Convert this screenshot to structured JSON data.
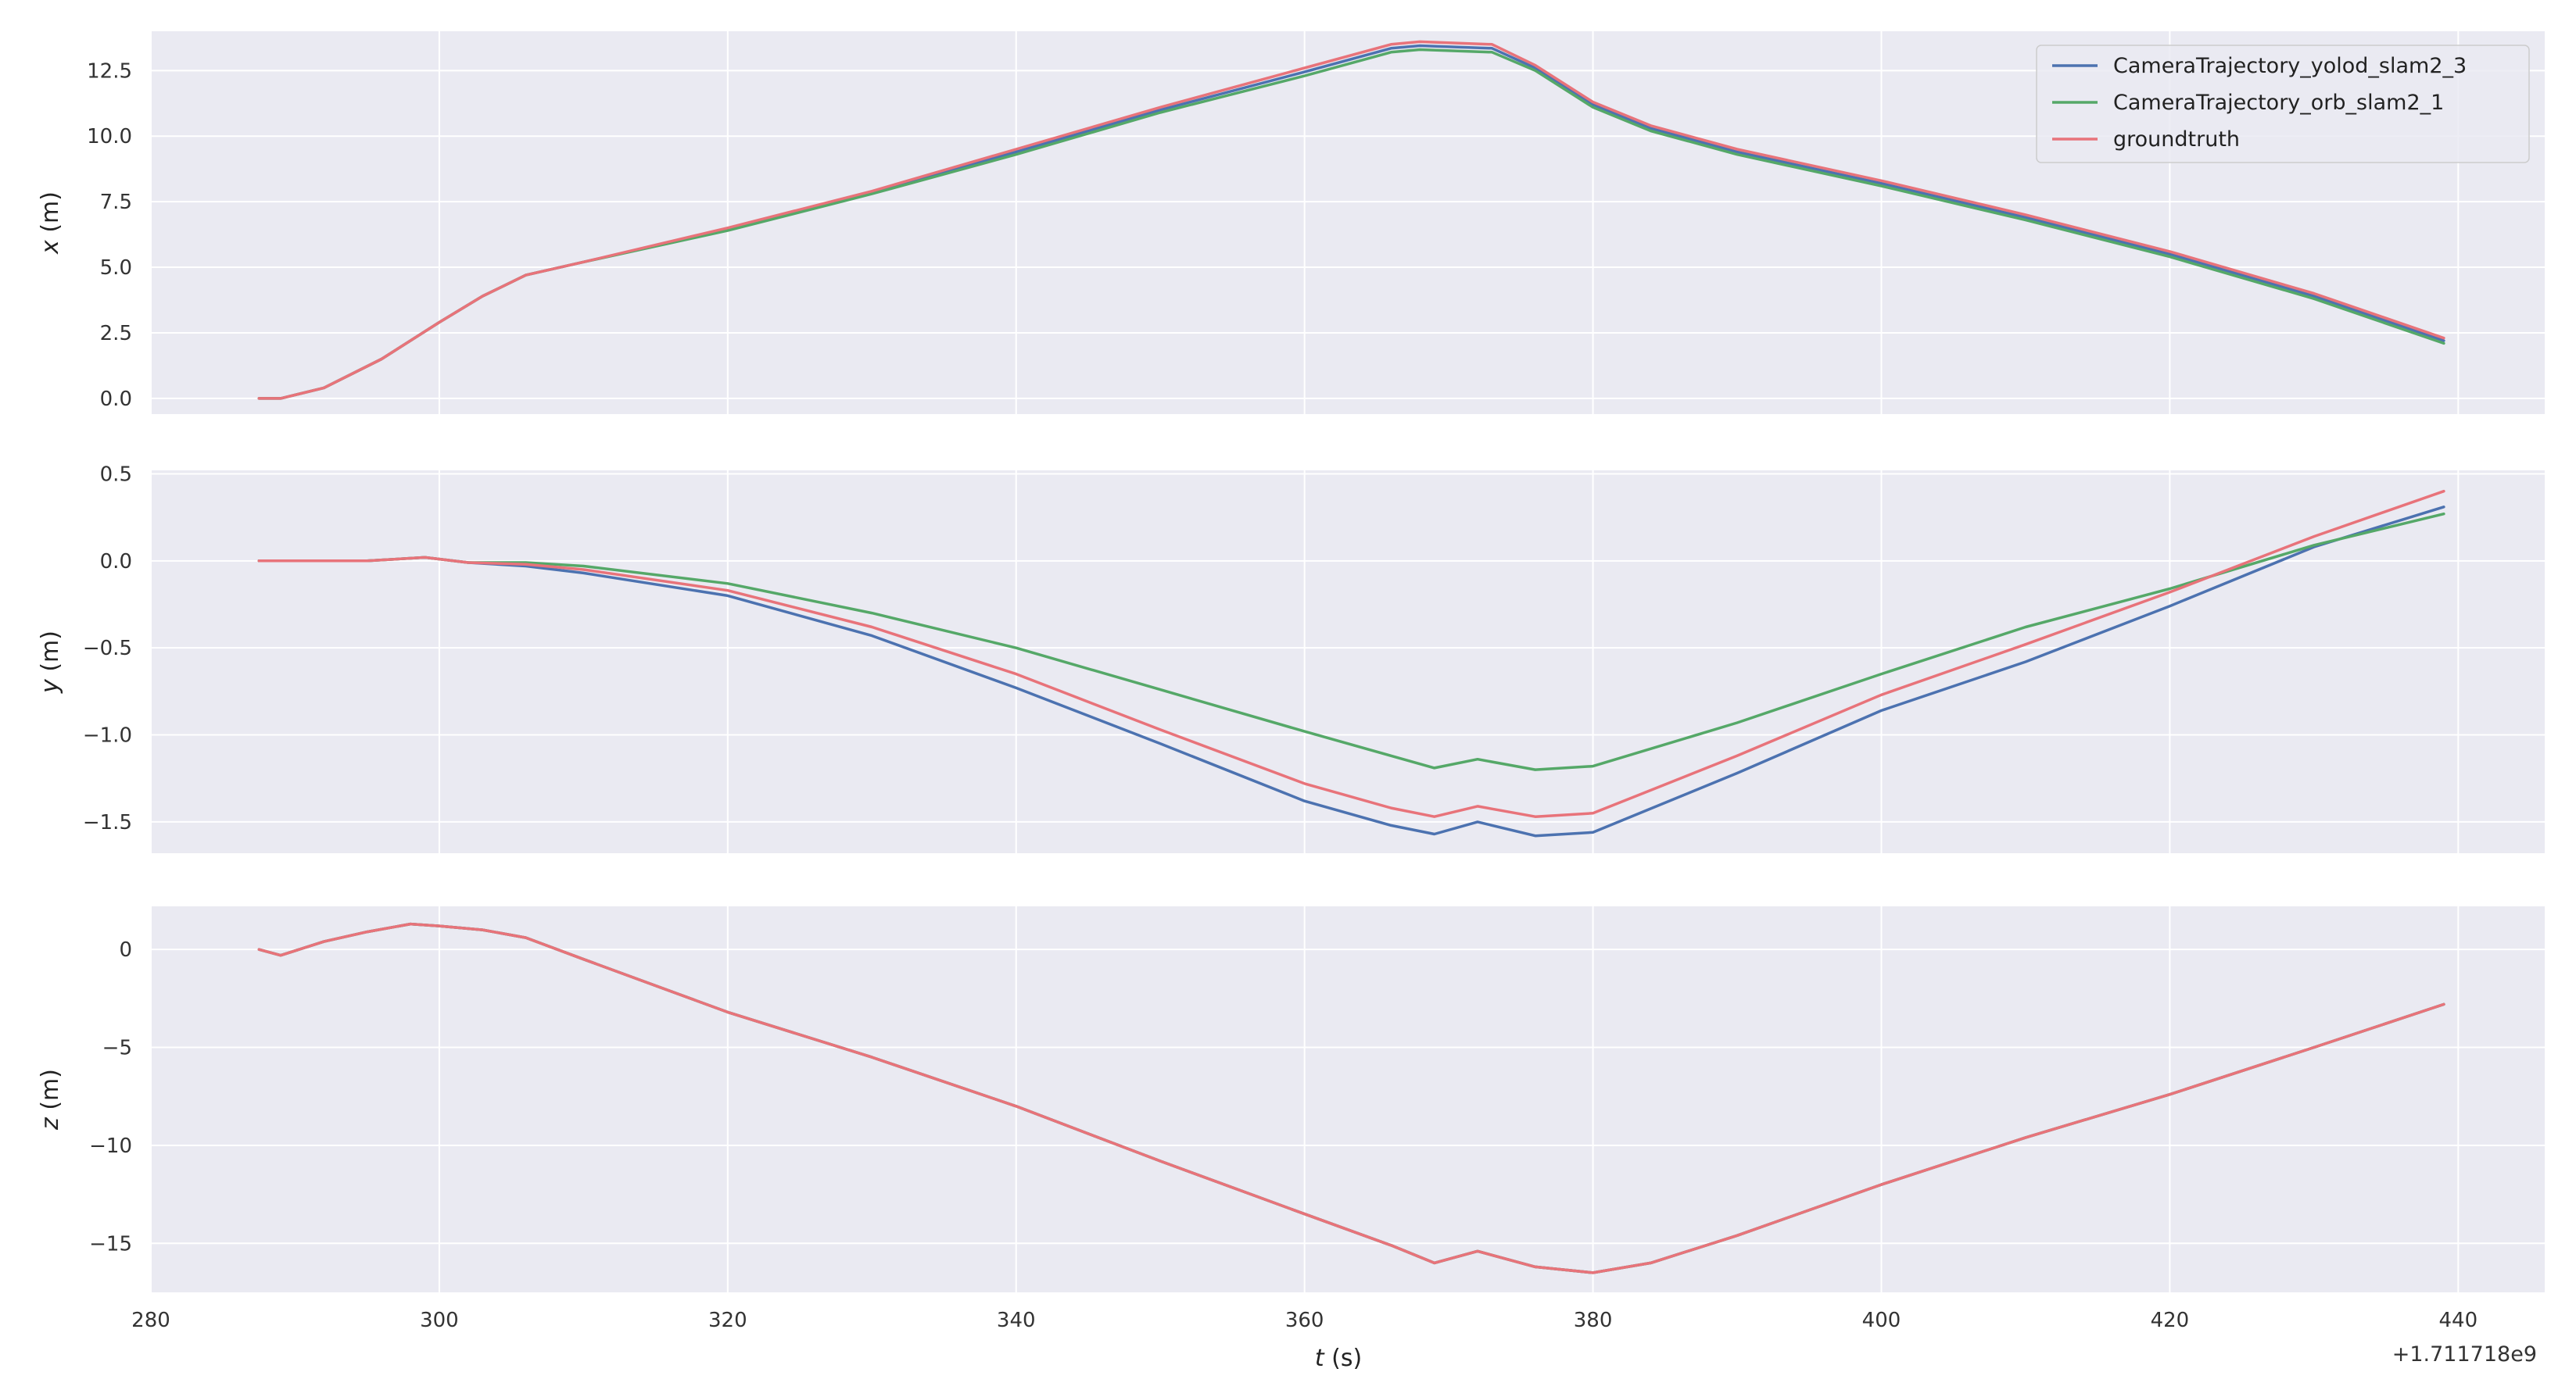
{
  "chart_data": {
    "type": "line",
    "x_offset_label": "+1.711718e9",
    "xlabel": "t (s)",
    "xlabel_var": "t",
    "xlabel_unit": " (s)",
    "xlim": [
      280,
      446
    ],
    "xticks": [
      280,
      300,
      320,
      340,
      360,
      380,
      400,
      420,
      440
    ],
    "grid": true,
    "legend": {
      "location": "top-right of first subplot",
      "entries": [
        "CameraTrajectory_yolod_slam2_3",
        "CameraTrajectory_orb_slam2_1",
        "groundtruth"
      ]
    },
    "colors": {
      "CameraTrajectory_yolod_slam2_3": "#4c72b0",
      "CameraTrajectory_orb_slam2_1": "#55a868",
      "groundtruth": "#e8737a",
      "background": "#eaeaf2",
      "grid": "#ffffff"
    },
    "subplots": [
      {
        "ylabel": "x (m)",
        "ylabel_var": "x",
        "ylabel_unit": " (m)",
        "ylim": [
          -0.6,
          14.0
        ],
        "yticks": [
          0.0,
          2.5,
          5.0,
          7.5,
          10.0,
          12.5
        ],
        "ytick_labels": [
          "0.0",
          "2.5",
          "5.0",
          "7.5",
          "10.0",
          "12.5"
        ],
        "series": [
          {
            "name": "groundtruth",
            "points": [
              [
                287.5,
                0.0
              ],
              [
                289,
                0.0
              ],
              [
                292,
                0.4
              ],
              [
                296,
                1.5
              ],
              [
                300,
                2.9
              ],
              [
                303,
                3.9
              ],
              [
                306,
                4.7
              ],
              [
                310,
                5.2
              ],
              [
                320,
                6.5
              ],
              [
                330,
                7.9
              ],
              [
                340,
                9.5
              ],
              [
                350,
                11.1
              ],
              [
                360,
                12.6
              ],
              [
                366,
                13.5
              ],
              [
                368,
                13.6
              ],
              [
                373,
                13.5
              ],
              [
                376,
                12.7
              ],
              [
                380,
                11.3
              ],
              [
                384,
                10.4
              ],
              [
                390,
                9.5
              ],
              [
                400,
                8.3
              ],
              [
                410,
                7.0
              ],
              [
                420,
                5.6
              ],
              [
                430,
                4.0
              ],
              [
                439,
                2.3
              ]
            ]
          },
          {
            "name": "CameraTrajectory_orb_slam2_1",
            "points": [
              [
                287.5,
                0.0
              ],
              [
                289,
                0.0
              ],
              [
                292,
                0.4
              ],
              [
                296,
                1.5
              ],
              [
                300,
                2.9
              ],
              [
                303,
                3.9
              ],
              [
                306,
                4.7
              ],
              [
                310,
                5.2
              ],
              [
                320,
                6.4
              ],
              [
                330,
                7.8
              ],
              [
                340,
                9.3
              ],
              [
                350,
                10.9
              ],
              [
                360,
                12.3
              ],
              [
                366,
                13.2
              ],
              [
                368,
                13.3
              ],
              [
                373,
                13.2
              ],
              [
                376,
                12.5
              ],
              [
                380,
                11.1
              ],
              [
                384,
                10.2
              ],
              [
                390,
                9.3
              ],
              [
                400,
                8.1
              ],
              [
                410,
                6.8
              ],
              [
                420,
                5.4
              ],
              [
                430,
                3.8
              ],
              [
                439,
                2.1
              ]
            ]
          },
          {
            "name": "CameraTrajectory_yolod_slam2_3",
            "points": [
              [
                287.5,
                0.0
              ],
              [
                289,
                0.0
              ],
              [
                292,
                0.4
              ],
              [
                296,
                1.5
              ],
              [
                300,
                2.9
              ],
              [
                303,
                3.9
              ],
              [
                306,
                4.7
              ],
              [
                310,
                5.2
              ],
              [
                320,
                6.45
              ],
              [
                330,
                7.85
              ],
              [
                340,
                9.4
              ],
              [
                350,
                11.0
              ],
              [
                360,
                12.45
              ],
              [
                366,
                13.35
              ],
              [
                368,
                13.45
              ],
              [
                373,
                13.35
              ],
              [
                376,
                12.6
              ],
              [
                380,
                11.2
              ],
              [
                384,
                10.3
              ],
              [
                390,
                9.4
              ],
              [
                400,
                8.2
              ],
              [
                410,
                6.9
              ],
              [
                420,
                5.5
              ],
              [
                430,
                3.9
              ],
              [
                439,
                2.2
              ]
            ]
          }
        ]
      },
      {
        "ylabel": "y (m)",
        "ylabel_var": "y",
        "ylabel_unit": " (m)",
        "ylim": [
          -1.68,
          0.52
        ],
        "yticks": [
          -1.5,
          -1.0,
          -0.5,
          0.0,
          0.5
        ],
        "ytick_labels": [
          "−1.5",
          "−1.0",
          "−0.5",
          "0.0",
          "0.5"
        ],
        "series": [
          {
            "name": "groundtruth",
            "points": [
              [
                287.5,
                0.0
              ],
              [
                295,
                0.0
              ],
              [
                299,
                0.02
              ],
              [
                302,
                -0.01
              ],
              [
                306,
                -0.02
              ],
              [
                310,
                -0.05
              ],
              [
                320,
                -0.17
              ],
              [
                330,
                -0.38
              ],
              [
                340,
                -0.65
              ],
              [
                350,
                -0.97
              ],
              [
                360,
                -1.28
              ],
              [
                366,
                -1.42
              ],
              [
                369,
                -1.47
              ],
              [
                372,
                -1.41
              ],
              [
                376,
                -1.47
              ],
              [
                380,
                -1.45
              ],
              [
                390,
                -1.12
              ],
              [
                400,
                -0.77
              ],
              [
                410,
                -0.48
              ],
              [
                420,
                -0.18
              ],
              [
                430,
                0.14
              ],
              [
                439,
                0.4
              ]
            ]
          },
          {
            "name": "CameraTrajectory_orb_slam2_1",
            "points": [
              [
                287.5,
                0.0
              ],
              [
                295,
                0.0
              ],
              [
                299,
                0.02
              ],
              [
                302,
                -0.01
              ],
              [
                306,
                -0.01
              ],
              [
                310,
                -0.03
              ],
              [
                320,
                -0.13
              ],
              [
                330,
                -0.3
              ],
              [
                340,
                -0.5
              ],
              [
                350,
                -0.74
              ],
              [
                360,
                -0.98
              ],
              [
                366,
                -1.12
              ],
              [
                369,
                -1.19
              ],
              [
                372,
                -1.14
              ],
              [
                376,
                -1.2
              ],
              [
                380,
                -1.18
              ],
              [
                390,
                -0.93
              ],
              [
                400,
                -0.65
              ],
              [
                410,
                -0.38
              ],
              [
                420,
                -0.16
              ],
              [
                430,
                0.09
              ],
              [
                439,
                0.27
              ]
            ]
          },
          {
            "name": "CameraTrajectory_yolod_slam2_3",
            "points": [
              [
                287.5,
                0.0
              ],
              [
                295,
                0.0
              ],
              [
                299,
                0.02
              ],
              [
                302,
                -0.01
              ],
              [
                306,
                -0.03
              ],
              [
                310,
                -0.07
              ],
              [
                320,
                -0.2
              ],
              [
                330,
                -0.43
              ],
              [
                340,
                -0.73
              ],
              [
                350,
                -1.05
              ],
              [
                360,
                -1.38
              ],
              [
                366,
                -1.52
              ],
              [
                369,
                -1.57
              ],
              [
                372,
                -1.5
              ],
              [
                376,
                -1.58
              ],
              [
                380,
                -1.56
              ],
              [
                390,
                -1.22
              ],
              [
                400,
                -0.86
              ],
              [
                410,
                -0.58
              ],
              [
                420,
                -0.26
              ],
              [
                430,
                0.08
              ],
              [
                439,
                0.31
              ]
            ]
          }
        ]
      },
      {
        "ylabel": "z (m)",
        "ylabel_var": "z",
        "ylabel_unit": " (m)",
        "ylim": [
          -17.5,
          2.2
        ],
        "yticks": [
          -15,
          -10,
          -5,
          0
        ],
        "ytick_labels": [
          "−15",
          "−10",
          "−5",
          "0"
        ],
        "series": [
          {
            "name": "groundtruth",
            "points": [
              [
                287.5,
                0.0
              ],
              [
                289,
                -0.3
              ],
              [
                292,
                0.4
              ],
              [
                295,
                0.9
              ],
              [
                298,
                1.3
              ],
              [
                300,
                1.2
              ],
              [
                303,
                1.0
              ],
              [
                306,
                0.6
              ],
              [
                310,
                -0.5
              ],
              [
                320,
                -3.2
              ],
              [
                330,
                -5.5
              ],
              [
                340,
                -8.0
              ],
              [
                350,
                -10.8
              ],
              [
                360,
                -13.5
              ],
              [
                366,
                -15.1
              ],
              [
                369,
                -16.0
              ],
              [
                372,
                -15.4
              ],
              [
                376,
                -16.2
              ],
              [
                380,
                -16.5
              ],
              [
                384,
                -16.0
              ],
              [
                390,
                -14.6
              ],
              [
                400,
                -12.0
              ],
              [
                410,
                -9.6
              ],
              [
                420,
                -7.4
              ],
              [
                430,
                -5.0
              ],
              [
                439,
                -2.8
              ]
            ]
          },
          {
            "name": "CameraTrajectory_orb_slam2_1",
            "points": [
              [
                287.5,
                0.0
              ],
              [
                289,
                -0.3
              ],
              [
                292,
                0.4
              ],
              [
                295,
                0.9
              ],
              [
                298,
                1.3
              ],
              [
                300,
                1.2
              ],
              [
                303,
                1.0
              ],
              [
                306,
                0.6
              ],
              [
                310,
                -0.5
              ],
              [
                320,
                -3.2
              ],
              [
                330,
                -5.5
              ],
              [
                340,
                -8.0
              ],
              [
                350,
                -10.8
              ],
              [
                360,
                -13.5
              ],
              [
                366,
                -15.1
              ],
              [
                369,
                -16.0
              ],
              [
                372,
                -15.4
              ],
              [
                376,
                -16.2
              ],
              [
                380,
                -16.5
              ],
              [
                384,
                -16.0
              ],
              [
                390,
                -14.6
              ],
              [
                400,
                -12.0
              ],
              [
                410,
                -9.6
              ],
              [
                420,
                -7.4
              ],
              [
                430,
                -5.0
              ],
              [
                439,
                -2.8
              ]
            ]
          },
          {
            "name": "CameraTrajectory_yolod_slam2_3",
            "points": [
              [
                287.5,
                0.0
              ],
              [
                289,
                -0.3
              ],
              [
                292,
                0.4
              ],
              [
                295,
                0.9
              ],
              [
                298,
                1.3
              ],
              [
                300,
                1.2
              ],
              [
                303,
                1.0
              ],
              [
                306,
                0.6
              ],
              [
                310,
                -0.5
              ],
              [
                320,
                -3.2
              ],
              [
                330,
                -5.5
              ],
              [
                340,
                -8.0
              ],
              [
                350,
                -10.8
              ],
              [
                360,
                -13.5
              ],
              [
                366,
                -15.1
              ],
              [
                369,
                -16.0
              ],
              [
                372,
                -15.4
              ],
              [
                376,
                -16.2
              ],
              [
                380,
                -16.5
              ],
              [
                384,
                -16.0
              ],
              [
                390,
                -14.6
              ],
              [
                400,
                -12.0
              ],
              [
                410,
                -9.6
              ],
              [
                420,
                -7.4
              ],
              [
                430,
                -5.0
              ],
              [
                439,
                -2.8
              ]
            ]
          }
        ]
      }
    ]
  }
}
